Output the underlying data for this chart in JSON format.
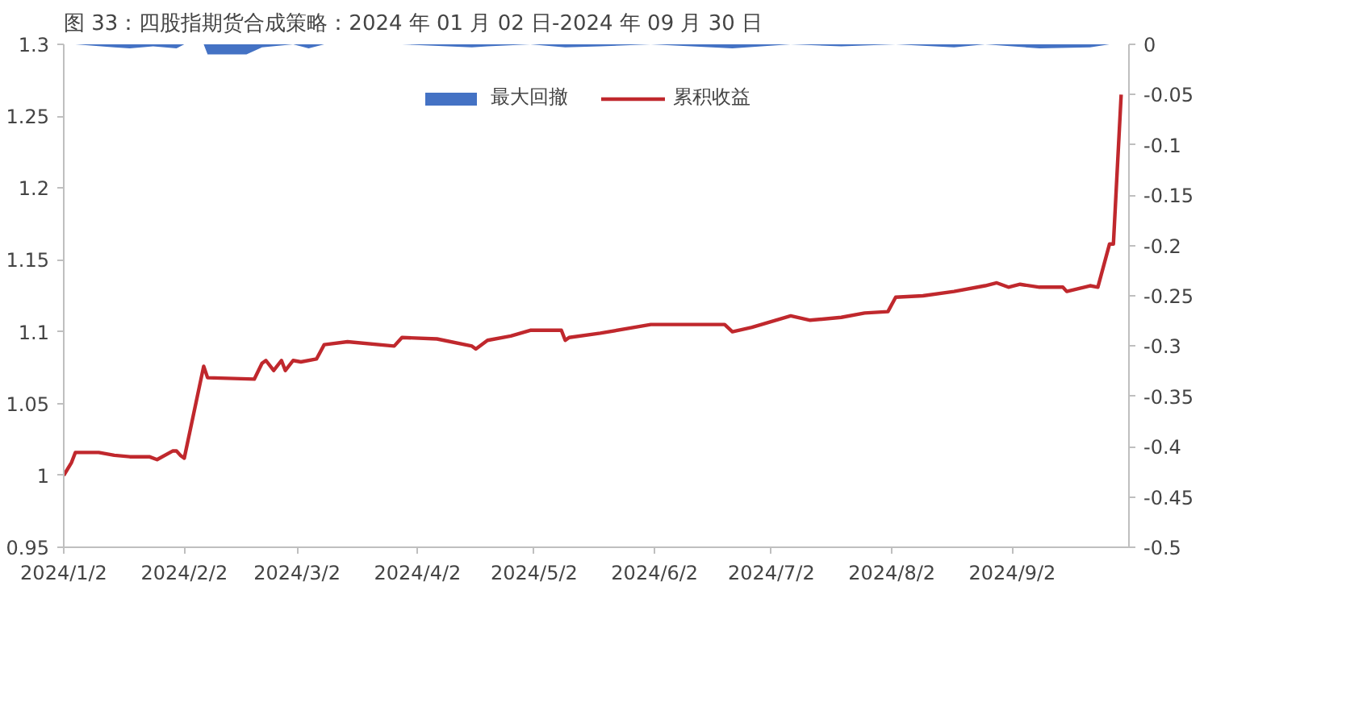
{
  "chart_data": {
    "type": "line",
    "title": "图 33：四股指期货合成策略：2024 年 01 月 02 日-2024 年 09 月 30 日",
    "xlim": [
      "2024-01-02",
      "2024-10-02"
    ],
    "xticks": [
      {
        "value": "2024-01-02",
        "label": "2024/1/2"
      },
      {
        "value": "2024-02-02",
        "label": "2024/2/2"
      },
      {
        "value": "2024-03-02",
        "label": "2024/3/2"
      },
      {
        "value": "2024-04-02",
        "label": "2024/4/2"
      },
      {
        "value": "2024-05-02",
        "label": "2024/5/2"
      },
      {
        "value": "2024-06-02",
        "label": "2024/6/2"
      },
      {
        "value": "2024-07-02",
        "label": "2024/7/2"
      },
      {
        "value": "2024-08-02",
        "label": "2024/8/2"
      },
      {
        "value": "2024-09-02",
        "label": "2024/9/2"
      }
    ],
    "ylim": [
      0.95,
      1.3
    ],
    "yticks": [
      0.95,
      1,
      1.05,
      1.1,
      1.15,
      1.2,
      1.25,
      1.3
    ],
    "y2lim": [
      -0.5,
      0
    ],
    "y2ticks": [
      -0.5,
      -0.45,
      -0.4,
      -0.35,
      -0.3,
      -0.25,
      -0.2,
      -0.15,
      -0.1,
      -0.05,
      0
    ],
    "legend": "top",
    "grid": false,
    "line_style": "solid",
    "marker": "none",
    "series": [
      {
        "name": "最大回撤",
        "type": "area",
        "axis": "y2",
        "color": "#4472c4",
        "x": [
          "2024-01-02",
          "2024-01-05",
          "2024-01-15",
          "2024-01-19",
          "2024-01-25",
          "2024-01-31",
          "2024-02-02",
          "2024-02-07",
          "2024-02-08",
          "2024-02-18",
          "2024-02-22",
          "2024-03-01",
          "2024-03-05",
          "2024-03-09",
          "2024-03-29",
          "2024-04-16",
          "2024-04-20",
          "2024-05-01",
          "2024-05-10",
          "2024-05-19",
          "2024-06-01",
          "2024-06-22",
          "2024-07-07",
          "2024-07-20",
          "2024-08-03",
          "2024-08-18",
          "2024-08-26",
          "2024-09-09",
          "2024-09-22",
          "2024-09-27",
          "2024-09-30"
        ],
        "values": [
          0,
          0,
          -0.003,
          -0.004,
          -0.002,
          -0.004,
          0,
          0,
          -0.01,
          -0.01,
          -0.003,
          0,
          -0.004,
          0,
          0,
          -0.003,
          -0.002,
          0,
          -0.003,
          -0.002,
          0,
          -0.004,
          0,
          -0.002,
          0,
          -0.003,
          0,
          -0.004,
          -0.003,
          0,
          0
        ]
      },
      {
        "name": "累积收益",
        "type": "line",
        "color": "#c0282d",
        "x": [
          "2024-01-02",
          "2024-01-04",
          "2024-01-05",
          "2024-01-11",
          "2024-01-15",
          "2024-01-19",
          "2024-01-24",
          "2024-01-26",
          "2024-01-30",
          "2024-01-31",
          "2024-02-01",
          "2024-02-02",
          "2024-02-07",
          "2024-02-08",
          "2024-02-20",
          "2024-02-22",
          "2024-02-23",
          "2024-02-25",
          "2024-02-27",
          "2024-02-28",
          "2024-03-01",
          "2024-03-03",
          "2024-03-07",
          "2024-03-09",
          "2024-03-15",
          "2024-03-27",
          "2024-03-29",
          "2024-04-07",
          "2024-04-16",
          "2024-04-17",
          "2024-04-20",
          "2024-04-26",
          "2024-05-01",
          "2024-05-09",
          "2024-05-10",
          "2024-05-11",
          "2024-05-19",
          "2024-06-01",
          "2024-06-20",
          "2024-06-22",
          "2024-06-27",
          "2024-07-07",
          "2024-07-12",
          "2024-07-20",
          "2024-07-26",
          "2024-08-01",
          "2024-08-03",
          "2024-08-10",
          "2024-08-18",
          "2024-08-26",
          "2024-08-29",
          "2024-09-01",
          "2024-09-04",
          "2024-09-09",
          "2024-09-15",
          "2024-09-16",
          "2024-09-22",
          "2024-09-24",
          "2024-09-27",
          "2024-09-28",
          "2024-09-30"
        ],
        "values": [
          1.0,
          1.009,
          1.016,
          1.016,
          1.014,
          1.013,
          1.013,
          1.011,
          1.017,
          1.017,
          1.014,
          1.012,
          1.076,
          1.068,
          1.067,
          1.078,
          1.08,
          1.073,
          1.08,
          1.073,
          1.08,
          1.079,
          1.081,
          1.091,
          1.093,
          1.09,
          1.096,
          1.095,
          1.09,
          1.088,
          1.094,
          1.097,
          1.101,
          1.101,
          1.094,
          1.096,
          1.099,
          1.105,
          1.105,
          1.1,
          1.103,
          1.111,
          1.108,
          1.11,
          1.113,
          1.114,
          1.124,
          1.125,
          1.128,
          1.132,
          1.134,
          1.131,
          1.133,
          1.131,
          1.131,
          1.128,
          1.132,
          1.131,
          1.161,
          1.161,
          1.265
        ]
      }
    ]
  }
}
